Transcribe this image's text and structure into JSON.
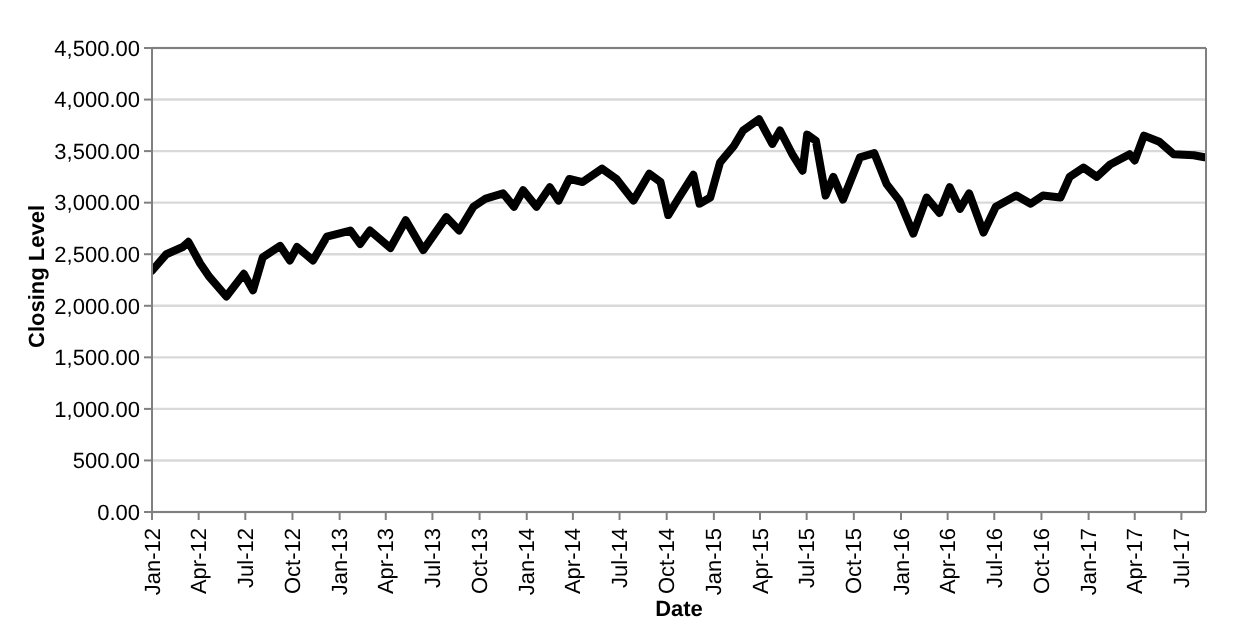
{
  "chart_data": {
    "type": "line",
    "xlabel": "Date",
    "ylabel": "Closing Level",
    "x": [
      "2012-01-01",
      "2012-01-29",
      "2012-03-01",
      "2012-03-12",
      "2012-04-04",
      "2012-04-22",
      "2012-05-25",
      "2012-06-28",
      "2012-07-16",
      "2012-08-04",
      "2012-09-07",
      "2012-09-26",
      "2012-10-10",
      "2012-11-10",
      "2012-12-07",
      "2013-01-22",
      "2013-02-10",
      "2013-03-01",
      "2013-04-10",
      "2013-05-10",
      "2013-06-13",
      "2013-07-28",
      "2013-08-22",
      "2013-09-19",
      "2013-10-13",
      "2013-11-16",
      "2013-12-07",
      "2013-12-25",
      "2014-01-20",
      "2014-02-15",
      "2014-03-04",
      "2014-03-25",
      "2014-04-20",
      "2014-05-28",
      "2014-06-25",
      "2014-07-28",
      "2014-08-28",
      "2014-09-19",
      "2014-10-04",
      "2014-10-25",
      "2014-11-22",
      "2014-12-04",
      "2014-12-25",
      "2015-01-13",
      "2015-02-09",
      "2015-02-27",
      "2015-03-30",
      "2015-04-25",
      "2015-05-10",
      "2015-06-04",
      "2015-06-23",
      "2015-07-02",
      "2015-07-19",
      "2015-08-07",
      "2015-08-22",
      "2015-09-10",
      "2015-10-13",
      "2015-11-10",
      "2015-12-04",
      "2015-12-29",
      "2016-01-25",
      "2016-02-20",
      "2016-03-16",
      "2016-04-05",
      "2016-04-25",
      "2016-05-13",
      "2016-06-10",
      "2016-07-04",
      "2016-08-13",
      "2016-09-10",
      "2016-10-04",
      "2016-11-07",
      "2016-11-25",
      "2016-12-22",
      "2017-01-17",
      "2017-02-12",
      "2017-03-22",
      "2017-04-01",
      "2017-04-19",
      "2017-05-19",
      "2017-06-16",
      "2017-07-25",
      "2017-08-15"
    ],
    "series": [
      {
        "color": "#000000",
        "values": [
          2340,
          2500,
          2570,
          2620,
          2410,
          2280,
          2090,
          2310,
          2150,
          2470,
          2580,
          2440,
          2570,
          2440,
          2670,
          2730,
          2600,
          2730,
          2560,
          2830,
          2540,
          2860,
          2730,
          2960,
          3040,
          3090,
          2960,
          3120,
          2960,
          3150,
          3020,
          3230,
          3200,
          3330,
          3230,
          3020,
          3280,
          3200,
          2880,
          3050,
          3270,
          2990,
          3050,
          3390,
          3550,
          3700,
          3810,
          3570,
          3700,
          3460,
          3310,
          3660,
          3600,
          3070,
          3250,
          3030,
          3440,
          3480,
          3180,
          3020,
          2700,
          3050,
          2900,
          3150,
          2940,
          3090,
          2710,
          2960,
          3070,
          2990,
          3070,
          3050,
          3250,
          3340,
          3250,
          3370,
          3470,
          3410,
          3650,
          3590,
          3470,
          3460,
          3440
        ]
      }
    ],
    "xlim": [
      "2012-01-01",
      "2017-08-18"
    ],
    "xticks": [
      {
        "value": "2012-01-01",
        "label": "Jan-12"
      },
      {
        "value": "2012-04-01",
        "label": "Apr-12"
      },
      {
        "value": "2012-07-01",
        "label": "Jul-12"
      },
      {
        "value": "2012-10-01",
        "label": "Oct-12"
      },
      {
        "value": "2013-01-01",
        "label": "Jan-13"
      },
      {
        "value": "2013-04-01",
        "label": "Apr-13"
      },
      {
        "value": "2013-07-01",
        "label": "Jul-13"
      },
      {
        "value": "2013-10-01",
        "label": "Oct-13"
      },
      {
        "value": "2014-01-01",
        "label": "Jan-14"
      },
      {
        "value": "2014-04-01",
        "label": "Apr-14"
      },
      {
        "value": "2014-07-01",
        "label": "Jul-14"
      },
      {
        "value": "2014-10-01",
        "label": "Oct-14"
      },
      {
        "value": "2015-01-01",
        "label": "Jan-15"
      },
      {
        "value": "2015-04-01",
        "label": "Apr-15"
      },
      {
        "value": "2015-07-01",
        "label": "Jul-15"
      },
      {
        "value": "2015-10-01",
        "label": "Oct-15"
      },
      {
        "value": "2016-01-01",
        "label": "Jan-16"
      },
      {
        "value": "2016-04-01",
        "label": "Apr-16"
      },
      {
        "value": "2016-07-01",
        "label": "Jul-16"
      },
      {
        "value": "2016-10-01",
        "label": "Oct-16"
      },
      {
        "value": "2017-01-01",
        "label": "Jan-17"
      },
      {
        "value": "2017-04-01",
        "label": "Apr-17"
      },
      {
        "value": "2017-07-01",
        "label": "Jul-17"
      }
    ],
    "ylim": [
      0,
      4500
    ],
    "yticks": [
      {
        "value": 0,
        "label": "0.00"
      },
      {
        "value": 500,
        "label": "500.00"
      },
      {
        "value": 1000,
        "label": "1,000.00"
      },
      {
        "value": 1500,
        "label": "1,500.00"
      },
      {
        "value": 2000,
        "label": "2,000.00"
      },
      {
        "value": 2500,
        "label": "2,500.00"
      },
      {
        "value": 3000,
        "label": "3,000.00"
      },
      {
        "value": 3500,
        "label": "3,500.00"
      },
      {
        "value": 4000,
        "label": "4,000.00"
      },
      {
        "value": 4500,
        "label": "4,500.00"
      }
    ],
    "grid": "y",
    "legend": false,
    "marker": "none",
    "line_style": "solid"
  }
}
